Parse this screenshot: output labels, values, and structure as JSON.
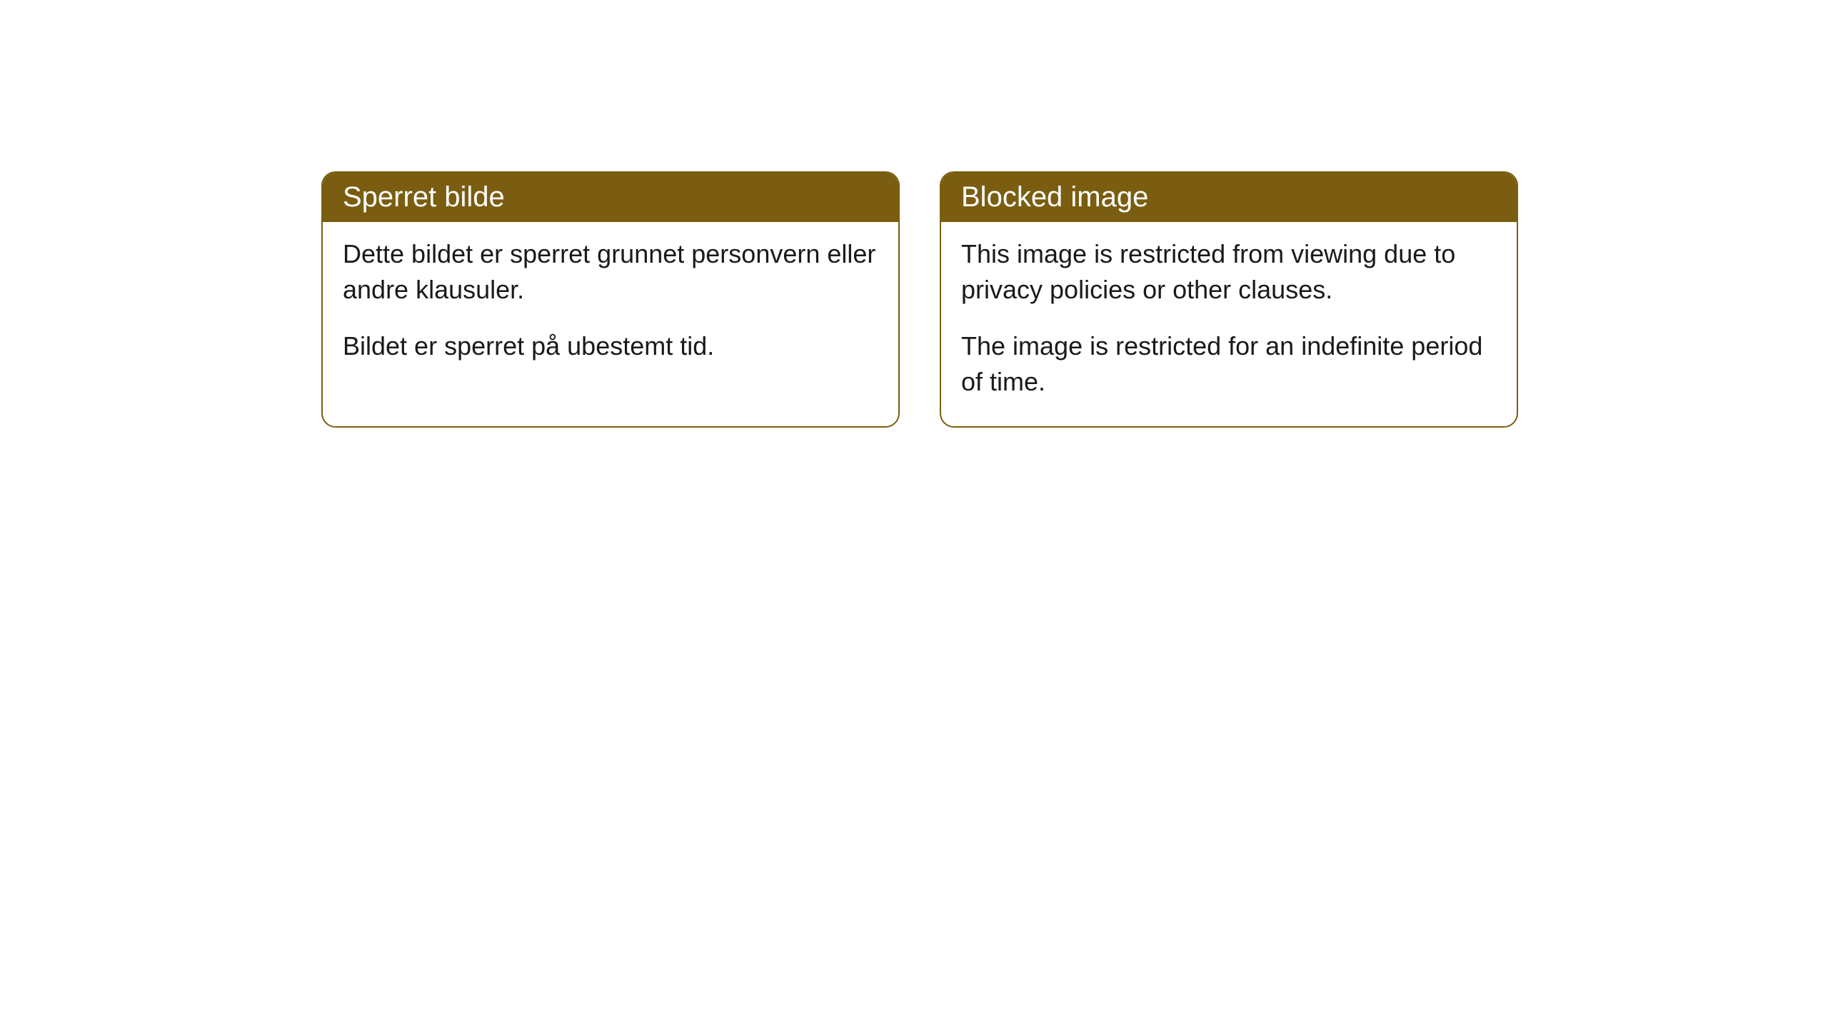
{
  "cards": [
    {
      "title": "Sperret bilde",
      "paragraph1": "Dette bildet er sperret grunnet personvern eller andre klausuler.",
      "paragraph2": "Bildet er sperret på ubestemt tid."
    },
    {
      "title": "Blocked image",
      "paragraph1": "This image is restricted from viewing due to privacy policies or other clauses.",
      "paragraph2": "The image is restricted for an indefinite period of time."
    }
  ],
  "styling": {
    "header_background_color": "#7a5d10",
    "header_text_color": "#ffffff",
    "border_color": "#7a5d10",
    "body_background_color": "#ffffff",
    "body_text_color": "#1a1a1a",
    "page_background_color": "#ffffff",
    "border_radius": 20,
    "header_fontsize": 40,
    "body_fontsize": 36
  }
}
